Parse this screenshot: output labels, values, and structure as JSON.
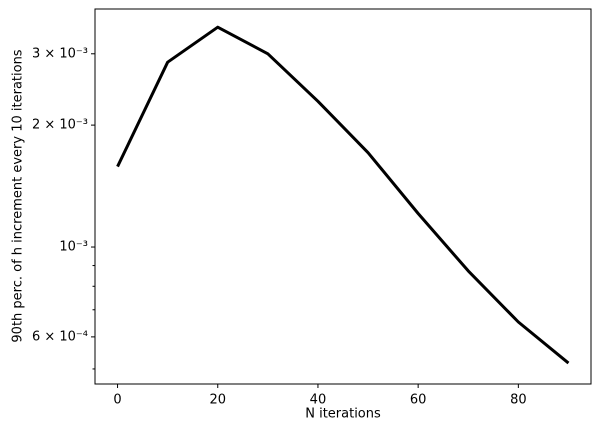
{
  "chart_data": {
    "type": "line",
    "xlabel": "N iterations",
    "ylabel": "90th perc. of h increment every 10 iterations",
    "x": [
      0,
      10,
      20,
      30,
      40,
      50,
      60,
      70,
      80,
      90
    ],
    "series": [
      {
        "color": "#000000",
        "values": [
          0.00158,
          0.00286,
          0.00349,
          0.003,
          0.00229,
          0.00171,
          0.00121,
          0.000873,
          0.000653,
          0.000517
        ]
      }
    ],
    "xlim": [
      -4.5,
      94.5
    ],
    "xticks": [
      0,
      20,
      40,
      60,
      80
    ],
    "ylim": [
      0.000459,
      0.00387
    ],
    "yscale": "log",
    "yticks": [
      {
        "value": 0.0006,
        "label": "6 × 10⁻⁴"
      },
      {
        "value": 0.001,
        "label": "10⁻³"
      },
      {
        "value": 0.002,
        "label": "2 × 10⁻³"
      },
      {
        "value": 0.003,
        "label": "3 × 10⁻³"
      }
    ],
    "yminorticks": [
      0.0005,
      0.0007,
      0.0008,
      0.0009
    ],
    "grid": false
  }
}
